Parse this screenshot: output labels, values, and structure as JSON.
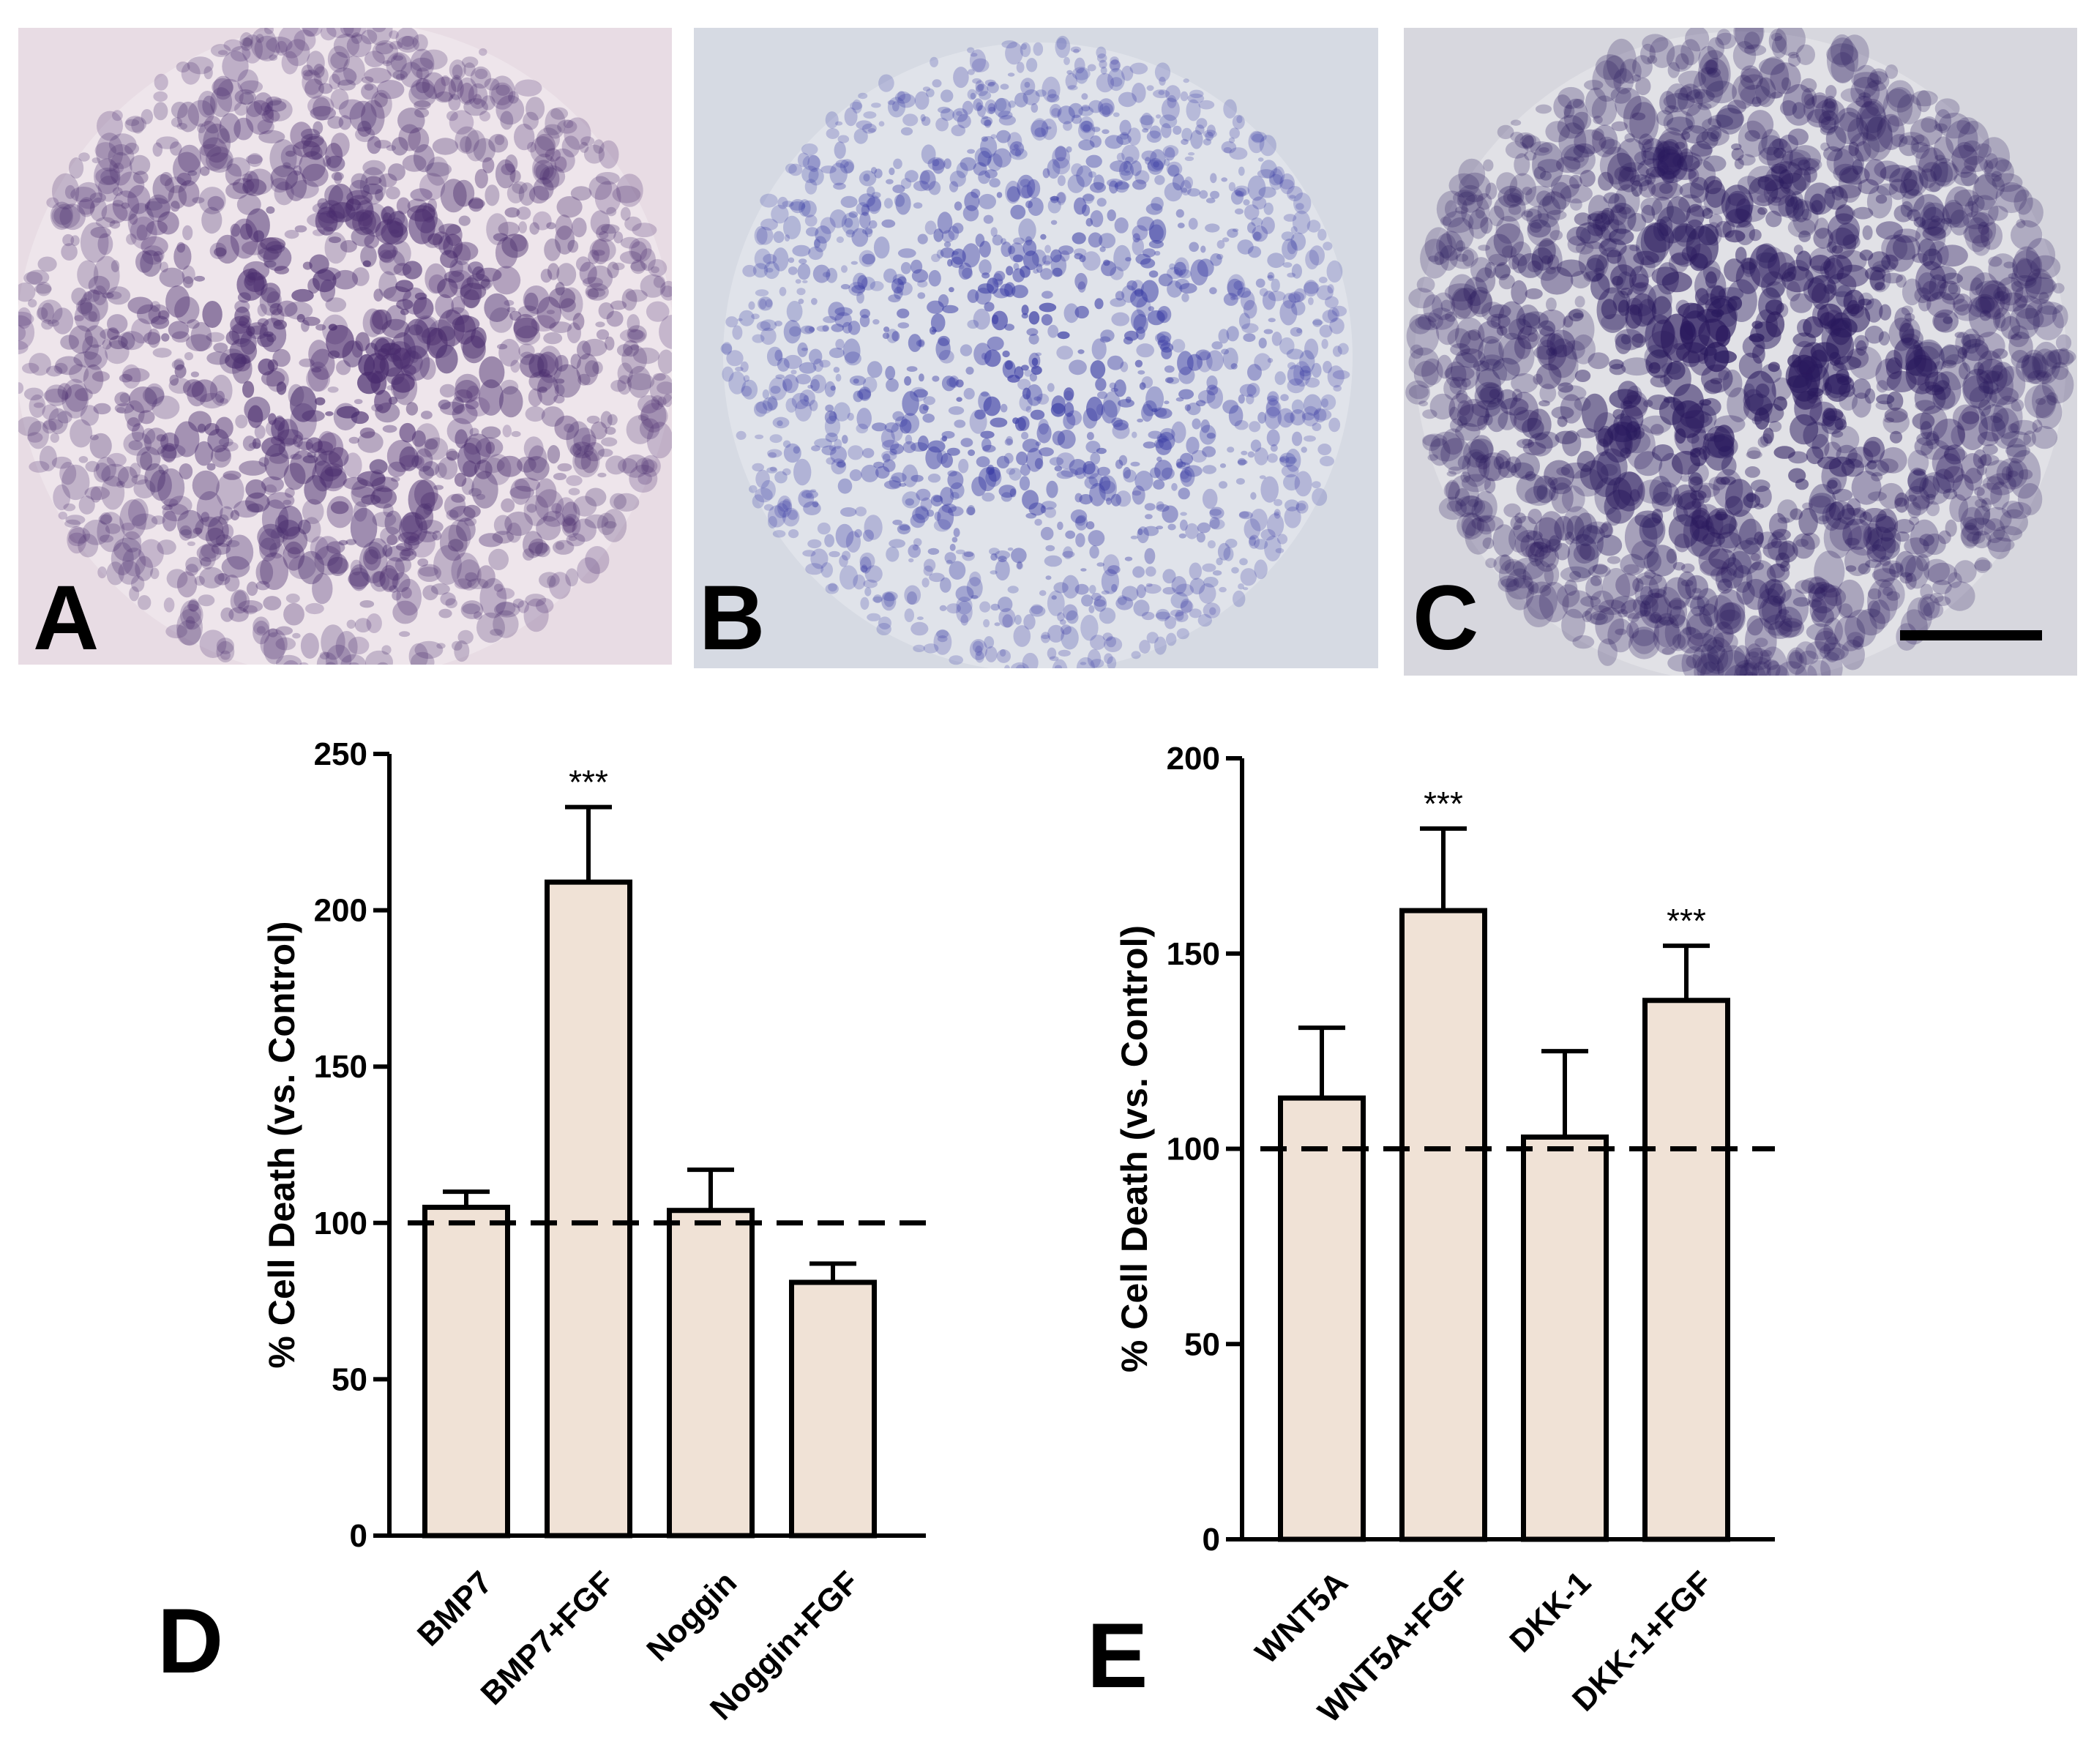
{
  "panels": {
    "a": {
      "letter": "A"
    },
    "b": {
      "letter": "B"
    },
    "c": {
      "letter": "C"
    },
    "d": {
      "letter": "D"
    },
    "e": {
      "letter": "E"
    }
  },
  "colors": {
    "bar_fill": "#f0e2d6",
    "bar_stroke": "#000000",
    "stain_a": "#4a2d6e",
    "stain_b": "#3d3fa6",
    "stain_c": "#2a1a5e",
    "bg_a": "#e8dce4",
    "bg_b": "#d6dae3",
    "bg_c": "#d7d7de"
  },
  "chart_data": [
    {
      "type": "bar",
      "panel": "D",
      "ylabel": "% Cell Death (vs. Control)",
      "ylim": [
        0,
        250
      ],
      "yticks": [
        "0",
        "50",
        "100",
        "150",
        "200",
        "250"
      ],
      "categories": [
        "BMP7",
        "BMP7+FGF",
        "Noggin",
        "Noggin+FGF"
      ],
      "values": [
        105,
        209,
        104,
        81
      ],
      "errors": [
        5,
        24,
        13,
        6
      ],
      "annotations": [
        "",
        "***",
        "",
        ""
      ],
      "reference_line": 100,
      "grid": false
    },
    {
      "type": "bar",
      "panel": "E",
      "ylabel": "% Cell Death (vs. Control)",
      "ylim": [
        0,
        200
      ],
      "yticks": [
        "0",
        "50",
        "100",
        "150",
        "200"
      ],
      "categories": [
        "WNT5A",
        "WNT5A+FGF",
        "DKK-1",
        "DKK-1+FGF"
      ],
      "values": [
        113,
        161,
        103,
        138
      ],
      "errors": [
        18,
        21,
        22,
        14
      ],
      "annotations": [
        "",
        "***",
        "",
        "***"
      ],
      "reference_line": 100,
      "grid": false
    }
  ]
}
